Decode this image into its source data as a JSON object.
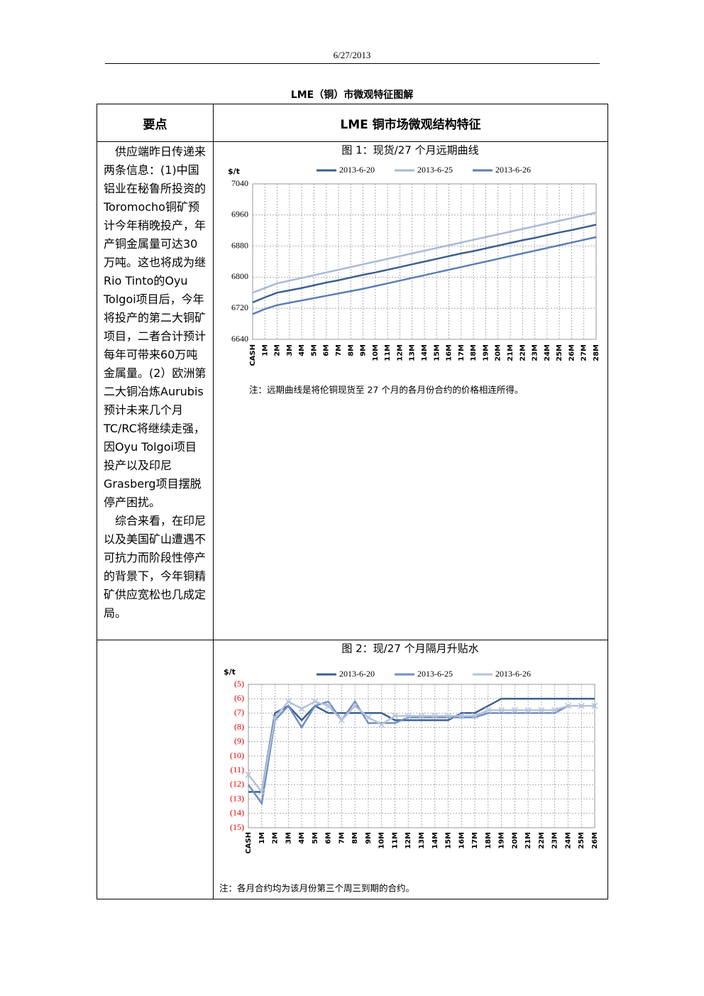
{
  "header": {
    "date": "6/27/2013"
  },
  "title": "LME（铜）市微观特征图解",
  "table": {
    "header": [
      "要点",
      "LME 铜市场微观结构特征"
    ],
    "text": [
      "供应端昨日传递来两条信息：(1)中国铝业在秘鲁所投资的Toromocho铜矿预计今年稍晚投产，年产铜金属量可达30万吨。这也将成为继Rio Tinto的Oyu Tolgoi项目后，今年将投产的第二大铜矿项目，二者合计预计每年可带来60万吨金属量。(2）欧洲第二大铜冶炼Aurubis预计未来几个月TC/RC将继续走强，因Oyu Tolgoi项目投产以及印尼Grasberg项目摆脱停产困扰。",
      "综合来看，在印尼以及美国矿山遭遇不可抗力而阶段性停产的背景下，今年铜精矿供应宽松也几成定局。"
    ]
  },
  "chart_data": [
    {
      "type": "line",
      "title": "图 1：现货/27 个月远期曲线",
      "unit": "$/t",
      "categories": [
        "CASH",
        "1M",
        "2M",
        "3M",
        "4M",
        "5M",
        "6M",
        "7M",
        "8M",
        "9M",
        "10M",
        "11M",
        "12M",
        "13M",
        "14M",
        "15M",
        "16M",
        "17M",
        "18M",
        "19M",
        "20M",
        "21M",
        "22M",
        "23M",
        "24M",
        "25M",
        "26M",
        "27M",
        "28M"
      ],
      "series": [
        {
          "name": "2013-6-20",
          "color": "#3d5f8f",
          "values": [
            6735,
            6748,
            6760,
            6766,
            6772,
            6779,
            6786,
            6792,
            6799,
            6806,
            6812,
            6819,
            6826,
            6833,
            6840,
            6847,
            6854,
            6861,
            6867,
            6874,
            6881,
            6888,
            6895,
            6901,
            6908,
            6915,
            6921,
            6928,
            6935
          ]
        },
        {
          "name": "2013-6-25",
          "color": "#aab8d6",
          "values": [
            6760,
            6772,
            6784,
            6791,
            6798,
            6805,
            6812,
            6819,
            6826,
            6833,
            6840,
            6847,
            6854,
            6861,
            6868,
            6875,
            6882,
            6889,
            6896,
            6903,
            6910,
            6917,
            6924,
            6931,
            6938,
            6945,
            6952,
            6959,
            6966
          ]
        },
        {
          "name": "2013-6-26",
          "color": "#5b7fb5",
          "values": [
            6705,
            6718,
            6728,
            6734,
            6740,
            6746,
            6752,
            6758,
            6764,
            6770,
            6777,
            6784,
            6791,
            6798,
            6805,
            6812,
            6819,
            6826,
            6833,
            6840,
            6847,
            6854,
            6861,
            6868,
            6875,
            6882,
            6889,
            6896,
            6903
          ]
        }
      ],
      "ylim": [
        6640,
        7040
      ],
      "yticks": [
        6640,
        6720,
        6800,
        6880,
        6960,
        7040
      ],
      "grid": true,
      "ytick_color": "#000000",
      "note": "注：远期曲线是将伦铜现货至 27 个月的各月份合约的价格相连所得。"
    },
    {
      "type": "line",
      "title": "图 2：现/27 个月隔月升贴水",
      "unit": "$/t",
      "categories": [
        "CASH",
        "1M",
        "2M",
        "3M",
        "4M",
        "5M",
        "6M",
        "7M",
        "8M",
        "9M",
        "10M",
        "11M",
        "12M",
        "13M",
        "14M",
        "15M",
        "16M",
        "17M",
        "18M",
        "19M",
        "20M",
        "21M",
        "22M",
        "23M",
        "24M",
        "25M",
        "26M"
      ],
      "series": [
        {
          "name": "2013-6-20",
          "color": "#3d5f8f",
          "values": [
            -12.5,
            -12.5,
            -7,
            -6.5,
            -7.5,
            -6.5,
            -7,
            -7,
            -7,
            -7,
            -7,
            -7.5,
            -7.5,
            -7.5,
            -7.5,
            -7.5,
            -7,
            -7,
            -6.5,
            -6,
            -6,
            -6,
            -6,
            -6,
            -6,
            -6,
            -6
          ]
        },
        {
          "name": "2013-6-25",
          "color": "#6e8fc2",
          "values": [
            -12,
            -13.3,
            -7.5,
            -6.5,
            -8,
            -6.5,
            -6.2,
            -7.5,
            -6.2,
            -7.7,
            -7.7,
            -7.7,
            -7.3,
            -7.3,
            -7.3,
            -7.3,
            -7.3,
            -7.3,
            -7,
            -7,
            -7,
            -7,
            -7,
            -7,
            -6.5,
            -6.5,
            -6.5
          ]
        },
        {
          "name": "2013-6-26",
          "color": "#b4c2dc",
          "marker": "x",
          "values": [
            -11.3,
            -12.5,
            -7.3,
            -6.2,
            -6.7,
            -6.2,
            -6.5,
            -7.5,
            -6.5,
            -7.3,
            -7.8,
            -7.2,
            -7.2,
            -7.2,
            -7.2,
            -7.2,
            -7.2,
            -7.2,
            -6.8,
            -6.8,
            -6.8,
            -6.8,
            -6.8,
            -6.8,
            -6.5,
            -6.5,
            -6.5
          ]
        }
      ],
      "ylim": [
        -15,
        -5
      ],
      "yticks": [
        {
          "value": -5,
          "label": "(5)"
        },
        {
          "value": -6,
          "label": "(6)"
        },
        {
          "value": -7,
          "label": "(7)"
        },
        {
          "value": -8,
          "label": "(8)"
        },
        {
          "value": -9,
          "label": "(9)"
        },
        {
          "value": -10,
          "label": "(10)"
        },
        {
          "value": -11,
          "label": "(11)"
        },
        {
          "value": -12,
          "label": "(12)"
        },
        {
          "value": -13,
          "label": "(13)"
        },
        {
          "value": -14,
          "label": "(14)"
        },
        {
          "value": -15,
          "label": "(15)"
        }
      ],
      "grid": true,
      "ytick_color": "#e00000",
      "note": "注：各月合约均为该月份第三个周三到期的合约。"
    }
  ]
}
